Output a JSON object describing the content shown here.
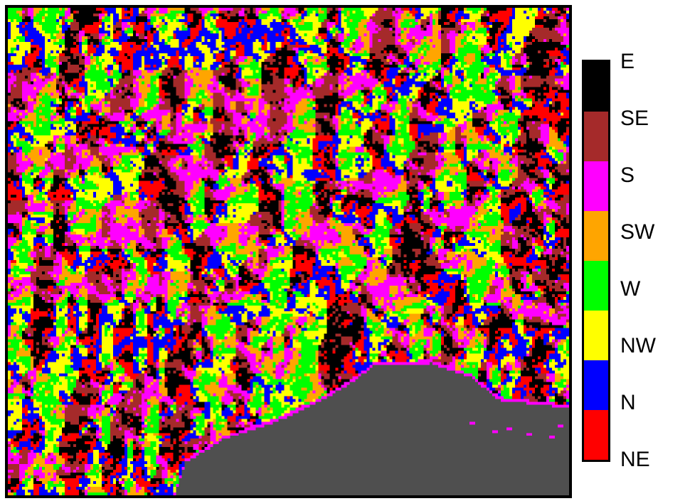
{
  "map": {
    "background_color": "#4f4f4f",
    "no_data_color": "#4f4f4f"
  },
  "legend": {
    "items": [
      {
        "label": "E",
        "color": "#000000"
      },
      {
        "label": "SE",
        "color": "#a52a2a"
      },
      {
        "label": "S",
        "color": "#ff00ff"
      },
      {
        "label": "SW",
        "color": "#ffa500"
      },
      {
        "label": "W",
        "color": "#00ff00"
      },
      {
        "label": "NW",
        "color": "#ffff00"
      },
      {
        "label": "N",
        "color": "#0000ff"
      },
      {
        "label": "NE",
        "color": "#ff0000"
      }
    ]
  }
}
